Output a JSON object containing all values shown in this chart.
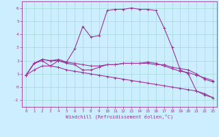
{
  "background_color": "#cceeff",
  "grid_color": "#aadddd",
  "line_color": "#993399",
  "xlabel": "Windchill (Refroidissement éolien,°C)",
  "xlim": [
    -0.5,
    23.5
  ],
  "ylim": [
    -1.5,
    6.5
  ],
  "yticks": [
    -1,
    0,
    1,
    2,
    3,
    4,
    5,
    6
  ],
  "xticks": [
    0,
    1,
    2,
    3,
    4,
    5,
    6,
    7,
    8,
    9,
    10,
    11,
    12,
    13,
    14,
    15,
    16,
    17,
    18,
    19,
    20,
    21,
    22,
    23
  ],
  "series": [
    {
      "x": [
        0,
        1,
        2,
        3,
        4,
        5,
        6,
        7,
        8,
        9,
        10,
        11,
        12,
        13,
        14,
        15,
        16,
        17,
        18,
        19,
        20,
        21,
        22,
        23
      ],
      "y": [
        0.9,
        1.3,
        1.6,
        1.6,
        1.5,
        1.3,
        1.2,
        1.1,
        1.0,
        0.9,
        0.8,
        0.7,
        0.6,
        0.5,
        0.4,
        0.3,
        0.2,
        0.1,
        0.0,
        -0.1,
        -0.2,
        -0.3,
        -0.5,
        -0.8
      ],
      "marker": "+"
    },
    {
      "x": [
        0,
        1,
        2,
        3,
        4,
        5,
        6,
        7,
        8,
        9,
        10,
        11,
        12,
        13,
        14,
        15,
        16,
        17,
        18,
        19,
        20,
        21,
        22,
        23
      ],
      "y": [
        0.9,
        1.8,
        2.0,
        1.6,
        2.0,
        1.8,
        1.7,
        1.3,
        1.3,
        1.5,
        1.7,
        1.7,
        1.8,
        1.8,
        1.8,
        1.8,
        1.7,
        1.7,
        1.5,
        1.4,
        1.3,
        1.0,
        0.6,
        0.4
      ],
      "marker": "+"
    },
    {
      "x": [
        0,
        1,
        2,
        3,
        4,
        5,
        6,
        7,
        8,
        9,
        10,
        11,
        12,
        13,
        14,
        15,
        16,
        17,
        18,
        19,
        20,
        21,
        22,
        23
      ],
      "y": [
        0.9,
        1.8,
        2.1,
        2.0,
        2.1,
        1.9,
        2.9,
        4.6,
        3.8,
        3.9,
        5.8,
        5.9,
        5.9,
        6.0,
        5.9,
        5.9,
        5.8,
        4.5,
        3.0,
        1.3,
        1.0,
        -0.3,
        -0.6,
        -0.8
      ],
      "marker": "+"
    },
    {
      "x": [
        0,
        1,
        2,
        3,
        4,
        5,
        6,
        7,
        8,
        9,
        10,
        11,
        12,
        13,
        14,
        15,
        16,
        17,
        18,
        19,
        20,
        21,
        22,
        23
      ],
      "y": [
        0.9,
        1.8,
        2.1,
        2.0,
        2.0,
        1.9,
        1.8,
        1.7,
        1.6,
        1.6,
        1.7,
        1.7,
        1.8,
        1.8,
        1.8,
        1.9,
        1.8,
        1.6,
        1.4,
        1.2,
        1.1,
        0.9,
        0.7,
        0.5
      ],
      "marker": "+"
    }
  ]
}
